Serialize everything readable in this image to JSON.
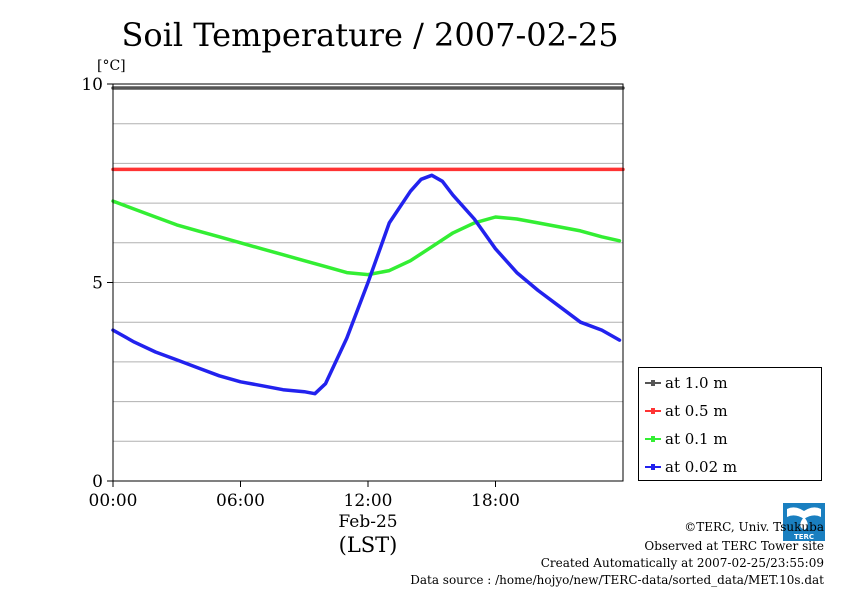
{
  "chart_data": {
    "type": "line",
    "title": "Soil Temperature / 2007-02-25",
    "ylabel": "[°C]",
    "xlabel": "(LST)",
    "x_date_label": "Feb-25",
    "xlim": [
      "00:00",
      "24:00"
    ],
    "ylim": [
      0,
      10
    ],
    "y_ticks": [
      0,
      5,
      10
    ],
    "x_ticks": [
      "00:00",
      "06:00",
      "12:00",
      "18:00"
    ],
    "grid": true,
    "legend_position": "bottom-right outside",
    "series": [
      {
        "name": "at 1.0 m",
        "color": "#555555",
        "x": [
          "00:00",
          "24:00"
        ],
        "values": [
          9.9,
          9.9
        ]
      },
      {
        "name": "at 0.5 m",
        "color": "#ff3333",
        "x": [
          "00:00",
          "24:00"
        ],
        "values": [
          7.85,
          7.85
        ]
      },
      {
        "name": "at 0.1 m",
        "color": "#33ee33",
        "x": [
          "00:00",
          "01:00",
          "02:00",
          "03:00",
          "04:00",
          "05:00",
          "06:00",
          "07:00",
          "08:00",
          "09:00",
          "10:00",
          "11:00",
          "12:00",
          "13:00",
          "14:00",
          "15:00",
          "16:00",
          "17:00",
          "18:00",
          "19:00",
          "20:00",
          "21:00",
          "22:00",
          "23:00",
          "23:50"
        ],
        "values": [
          7.05,
          6.85,
          6.65,
          6.45,
          6.3,
          6.15,
          6.0,
          5.85,
          5.7,
          5.55,
          5.4,
          5.25,
          5.2,
          5.3,
          5.55,
          5.9,
          6.25,
          6.5,
          6.65,
          6.6,
          6.5,
          6.4,
          6.3,
          6.15,
          6.05
        ]
      },
      {
        "name": "at 0.02 m",
        "color": "#2222ee",
        "x": [
          "00:00",
          "01:00",
          "02:00",
          "03:00",
          "04:00",
          "05:00",
          "06:00",
          "07:00",
          "08:00",
          "09:00",
          "09:30",
          "10:00",
          "11:00",
          "12:00",
          "13:00",
          "14:00",
          "14:30",
          "15:00",
          "15:30",
          "16:00",
          "17:00",
          "18:00",
          "19:00",
          "20:00",
          "21:00",
          "22:00",
          "23:00",
          "23:50"
        ],
        "values": [
          3.8,
          3.5,
          3.25,
          3.05,
          2.85,
          2.65,
          2.5,
          2.4,
          2.3,
          2.25,
          2.2,
          2.45,
          3.6,
          5.0,
          6.5,
          7.3,
          7.6,
          7.7,
          7.55,
          7.2,
          6.6,
          5.85,
          5.25,
          4.8,
          4.4,
          4.0,
          3.8,
          3.55
        ]
      }
    ]
  },
  "footer": {
    "copyright": "©TERC, Univ. Tsukuba",
    "observed": "Observed at TERC Tower site",
    "created": "Created Automatically at 2007-02-25/23:55:09",
    "source": "Data source : /home/hojyo/new/TERC-data/sorted_data/MET.10s.dat"
  },
  "logo": {
    "text": "TERC",
    "color": "#1a7fc0"
  }
}
